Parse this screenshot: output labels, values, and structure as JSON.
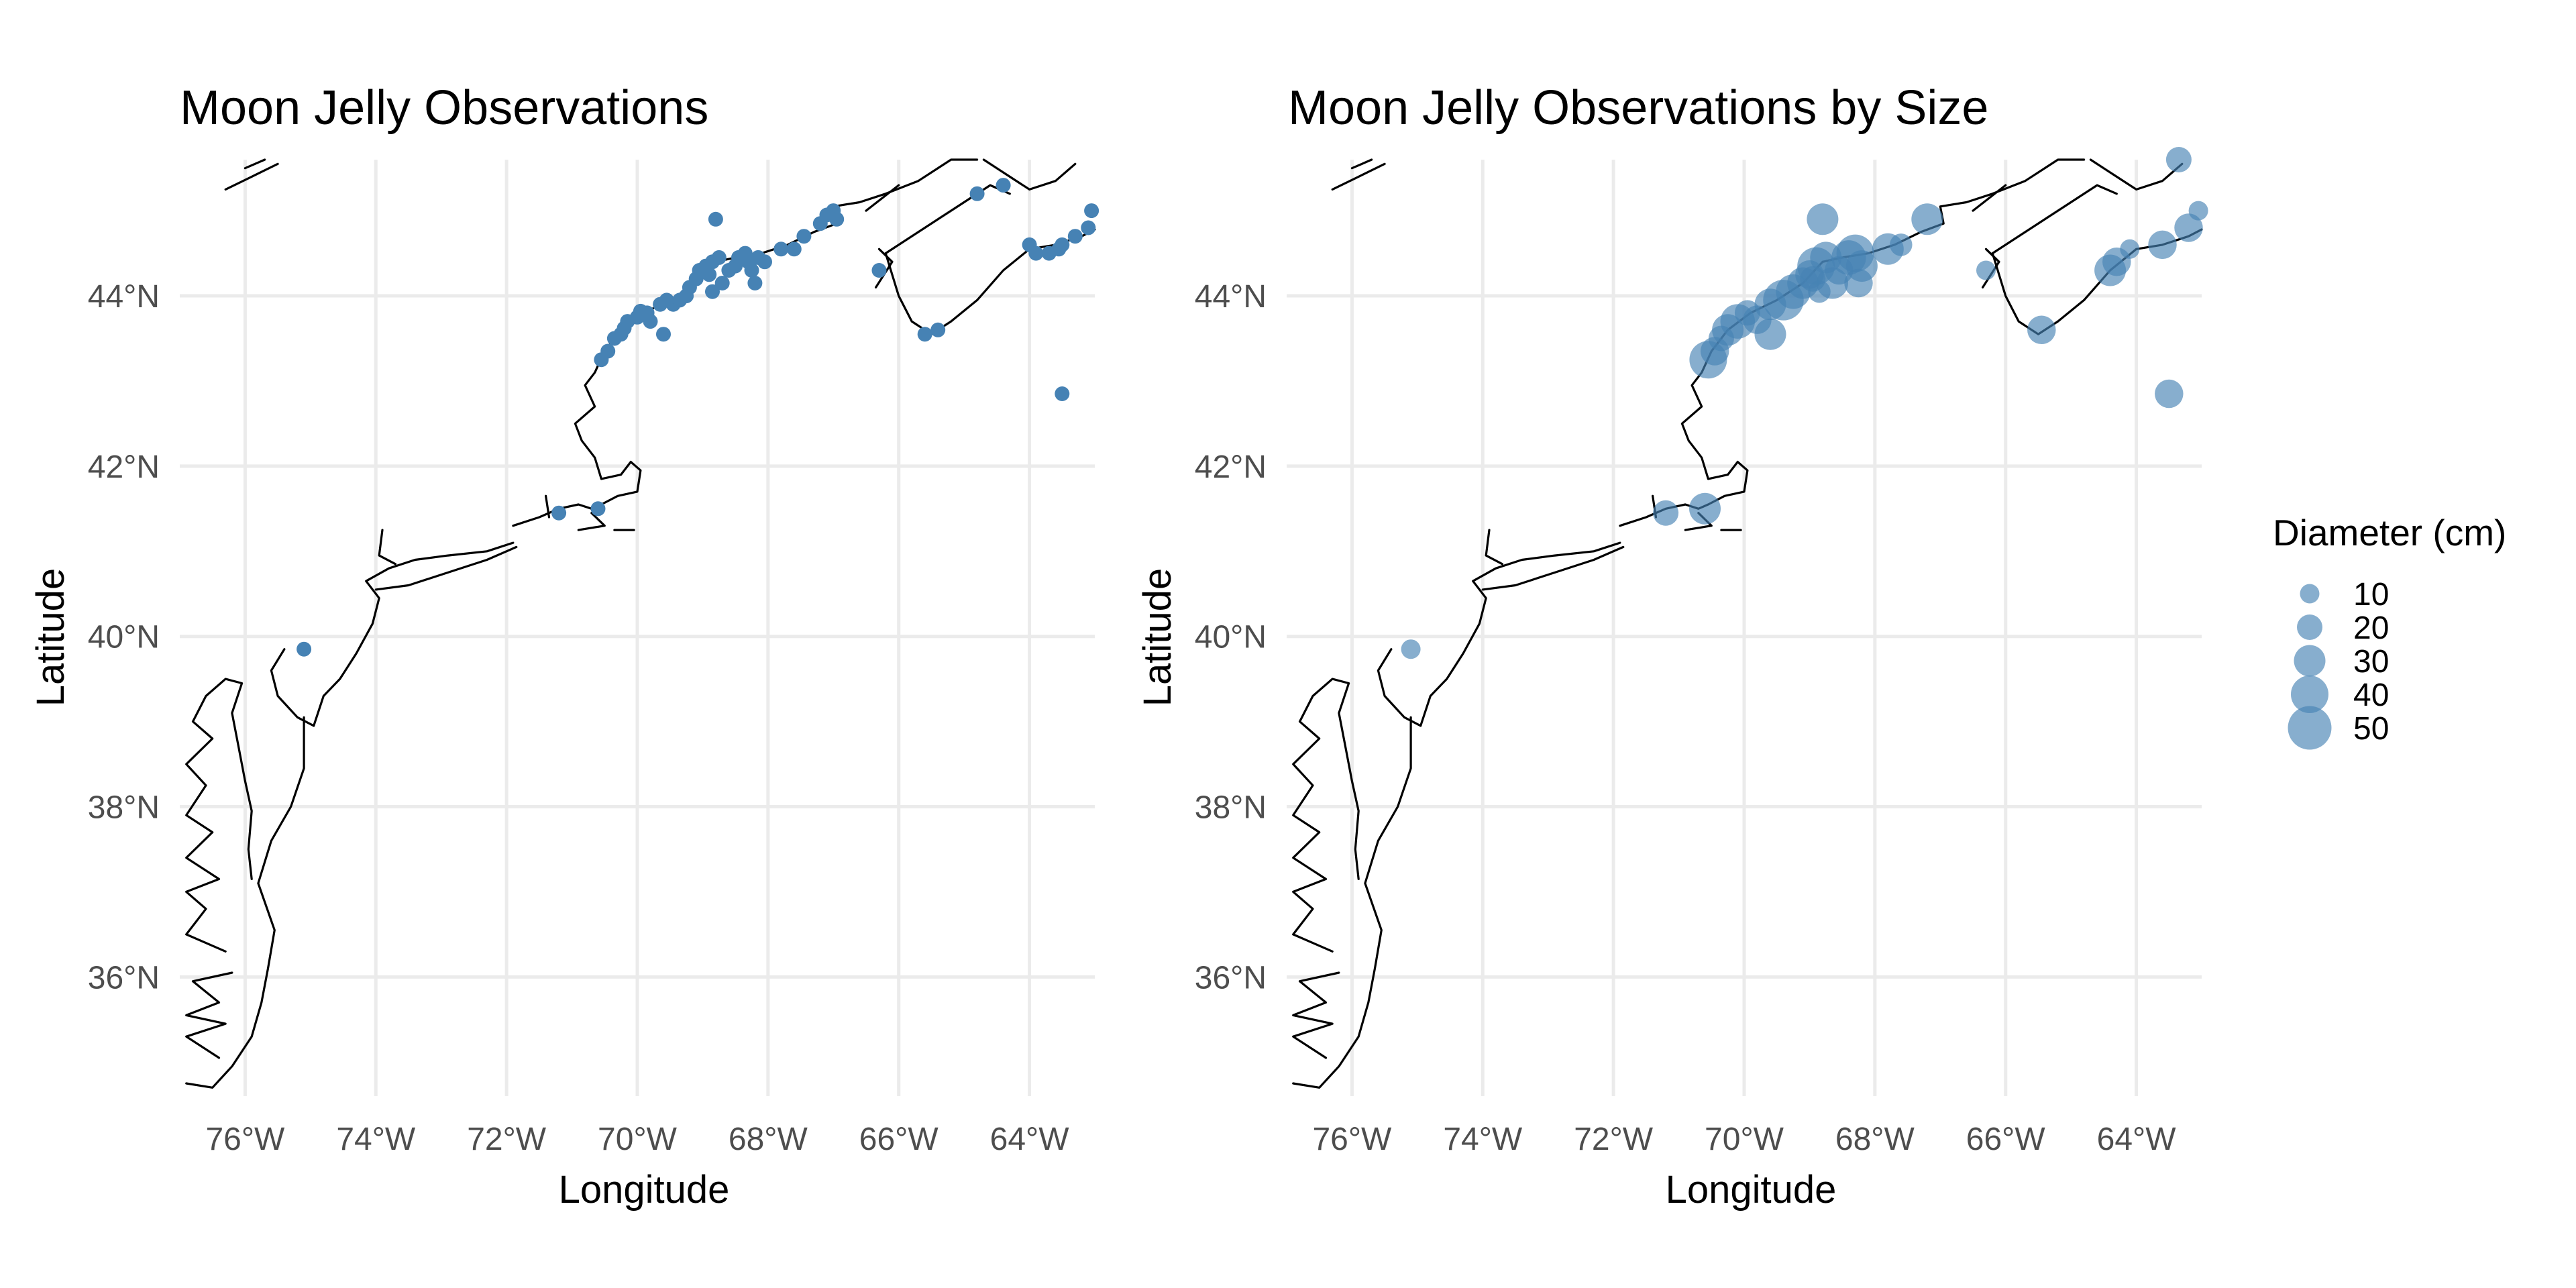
{
  "chart_data": [
    {
      "type": "scatter",
      "subtype": "map",
      "title": "Moon Jelly Observations",
      "xlabel": "Longitude",
      "ylabel": "Latitude",
      "xlim": [
        -77.0,
        -63.0
      ],
      "ylim": [
        34.6,
        45.6
      ],
      "x_ticks": [
        -76,
        -74,
        -72,
        -70,
        -68,
        -66,
        -64
      ],
      "x_tick_labels": [
        "76°W",
        "74°W",
        "72°W",
        "70°W",
        "68°W",
        "66°W",
        "64°W"
      ],
      "y_ticks": [
        36,
        38,
        40,
        42,
        44
      ],
      "y_tick_labels": [
        "36°N",
        "38°N",
        "40°N",
        "42°N",
        "44°N"
      ],
      "grid": true,
      "color": "#4682B4",
      "points": [
        [
          -75.1,
          39.85
        ],
        [
          -71.2,
          41.45
        ],
        [
          -70.6,
          41.5
        ],
        [
          -70.55,
          43.25
        ],
        [
          -70.45,
          43.35
        ],
        [
          -70.35,
          43.5
        ],
        [
          -70.25,
          43.55
        ],
        [
          -70.2,
          43.62
        ],
        [
          -70.15,
          43.7
        ],
        [
          -70.0,
          43.75
        ],
        [
          -69.95,
          43.82
        ],
        [
          -69.85,
          43.8
        ],
        [
          -69.8,
          43.7
        ],
        [
          -69.65,
          43.9
        ],
        [
          -69.55,
          43.95
        ],
        [
          -69.45,
          43.9
        ],
        [
          -69.35,
          43.95
        ],
        [
          -69.25,
          44.0
        ],
        [
          -69.2,
          44.1
        ],
        [
          -69.1,
          44.2
        ],
        [
          -69.05,
          44.3
        ],
        [
          -68.95,
          44.35
        ],
        [
          -68.85,
          44.4
        ],
        [
          -68.75,
          44.45
        ],
        [
          -68.9,
          44.25
        ],
        [
          -68.85,
          44.05
        ],
        [
          -68.7,
          44.15
        ],
        [
          -68.6,
          44.3
        ],
        [
          -68.5,
          44.35
        ],
        [
          -68.45,
          44.45
        ],
        [
          -68.35,
          44.5
        ],
        [
          -68.3,
          44.4
        ],
        [
          -68.25,
          44.3
        ],
        [
          -68.2,
          44.15
        ],
        [
          -68.15,
          44.45
        ],
        [
          -68.05,
          44.4
        ],
        [
          -67.8,
          44.55
        ],
        [
          -67.6,
          44.55
        ],
        [
          -67.45,
          44.7
        ],
        [
          -67.2,
          44.85
        ],
        [
          -67.1,
          44.95
        ],
        [
          -67.0,
          45.0
        ],
        [
          -66.95,
          44.9
        ],
        [
          -69.6,
          43.55
        ],
        [
          -68.8,
          44.9
        ],
        [
          -66.3,
          44.3
        ],
        [
          -65.6,
          43.55
        ],
        [
          -65.4,
          43.6
        ],
        [
          -64.8,
          45.2
        ],
        [
          -64.4,
          45.3
        ],
        [
          -64.0,
          44.6
        ],
        [
          -63.9,
          44.5
        ],
        [
          -63.7,
          44.5
        ],
        [
          -63.55,
          44.55
        ],
        [
          -63.5,
          44.6
        ],
        [
          -63.3,
          44.7
        ],
        [
          -63.1,
          44.8
        ],
        [
          -63.05,
          45.0
        ],
        [
          -63.5,
          42.85
        ]
      ]
    },
    {
      "type": "scatter",
      "subtype": "map",
      "title": "Moon Jelly Observations by Size",
      "xlabel": "Longitude",
      "ylabel": "Latitude",
      "xlim": [
        -77.0,
        -63.0
      ],
      "ylim": [
        34.6,
        45.6
      ],
      "x_ticks": [
        -76,
        -74,
        -72,
        -70,
        -68,
        -66,
        -64
      ],
      "x_tick_labels": [
        "76°W",
        "74°W",
        "72°W",
        "70°W",
        "68°W",
        "66°W",
        "64°W"
      ],
      "y_ticks": [
        36,
        38,
        40,
        42,
        44
      ],
      "y_tick_labels": [
        "36°N",
        "38°N",
        "40°N",
        "42°N",
        "44°N"
      ],
      "grid": true,
      "color": "#4682B4",
      "legend": {
        "title": "Diameter (cm)",
        "position": "right",
        "entries": [
          {
            "label": "10",
            "size": 10
          },
          {
            "label": "20",
            "size": 20
          },
          {
            "label": "30",
            "size": 30
          },
          {
            "label": "40",
            "size": 40
          },
          {
            "label": "50",
            "size": 50
          }
        ]
      },
      "points": [
        [
          -71.2,
          41.45,
          20
        ],
        [
          -70.6,
          41.5,
          30
        ],
        [
          -70.55,
          43.25,
          40
        ],
        [
          -70.45,
          43.35,
          25
        ],
        [
          -70.35,
          43.5,
          20
        ],
        [
          -70.25,
          43.6,
          30
        ],
        [
          -70.1,
          43.7,
          35
        ],
        [
          -69.95,
          43.8,
          20
        ],
        [
          -69.8,
          43.72,
          25
        ],
        [
          -69.6,
          43.9,
          30
        ],
        [
          -69.4,
          43.95,
          45
        ],
        [
          -69.25,
          44.05,
          35
        ],
        [
          -69.1,
          44.15,
          30
        ],
        [
          -69.0,
          44.25,
          25
        ],
        [
          -68.9,
          44.35,
          40
        ],
        [
          -68.75,
          44.45,
          30
        ],
        [
          -68.95,
          44.2,
          20
        ],
        [
          -68.85,
          44.05,
          15
        ],
        [
          -68.65,
          44.15,
          30
        ],
        [
          -68.55,
          44.3,
          25
        ],
        [
          -68.4,
          44.45,
          35
        ],
        [
          -68.3,
          44.5,
          40
        ],
        [
          -68.2,
          44.35,
          30
        ],
        [
          -68.25,
          44.15,
          25
        ],
        [
          -67.8,
          44.55,
          30
        ],
        [
          -67.6,
          44.6,
          15
        ],
        [
          -67.2,
          44.9,
          30
        ],
        [
          -69.6,
          43.55,
          30
        ],
        [
          -68.8,
          44.9,
          30
        ],
        [
          -66.3,
          44.3,
          10
        ],
        [
          -65.45,
          43.6,
          25
        ],
        [
          -64.4,
          44.3,
          30
        ],
        [
          -64.3,
          44.4,
          25
        ],
        [
          -64.1,
          44.55,
          10
        ],
        [
          -63.6,
          44.6,
          25
        ],
        [
          -63.2,
          44.8,
          25
        ],
        [
          -63.05,
          45.0,
          10
        ],
        [
          -63.35,
          45.6,
          20
        ],
        [
          -63.5,
          42.85,
          25
        ],
        [
          -75.1,
          39.85,
          10
        ]
      ]
    }
  ]
}
